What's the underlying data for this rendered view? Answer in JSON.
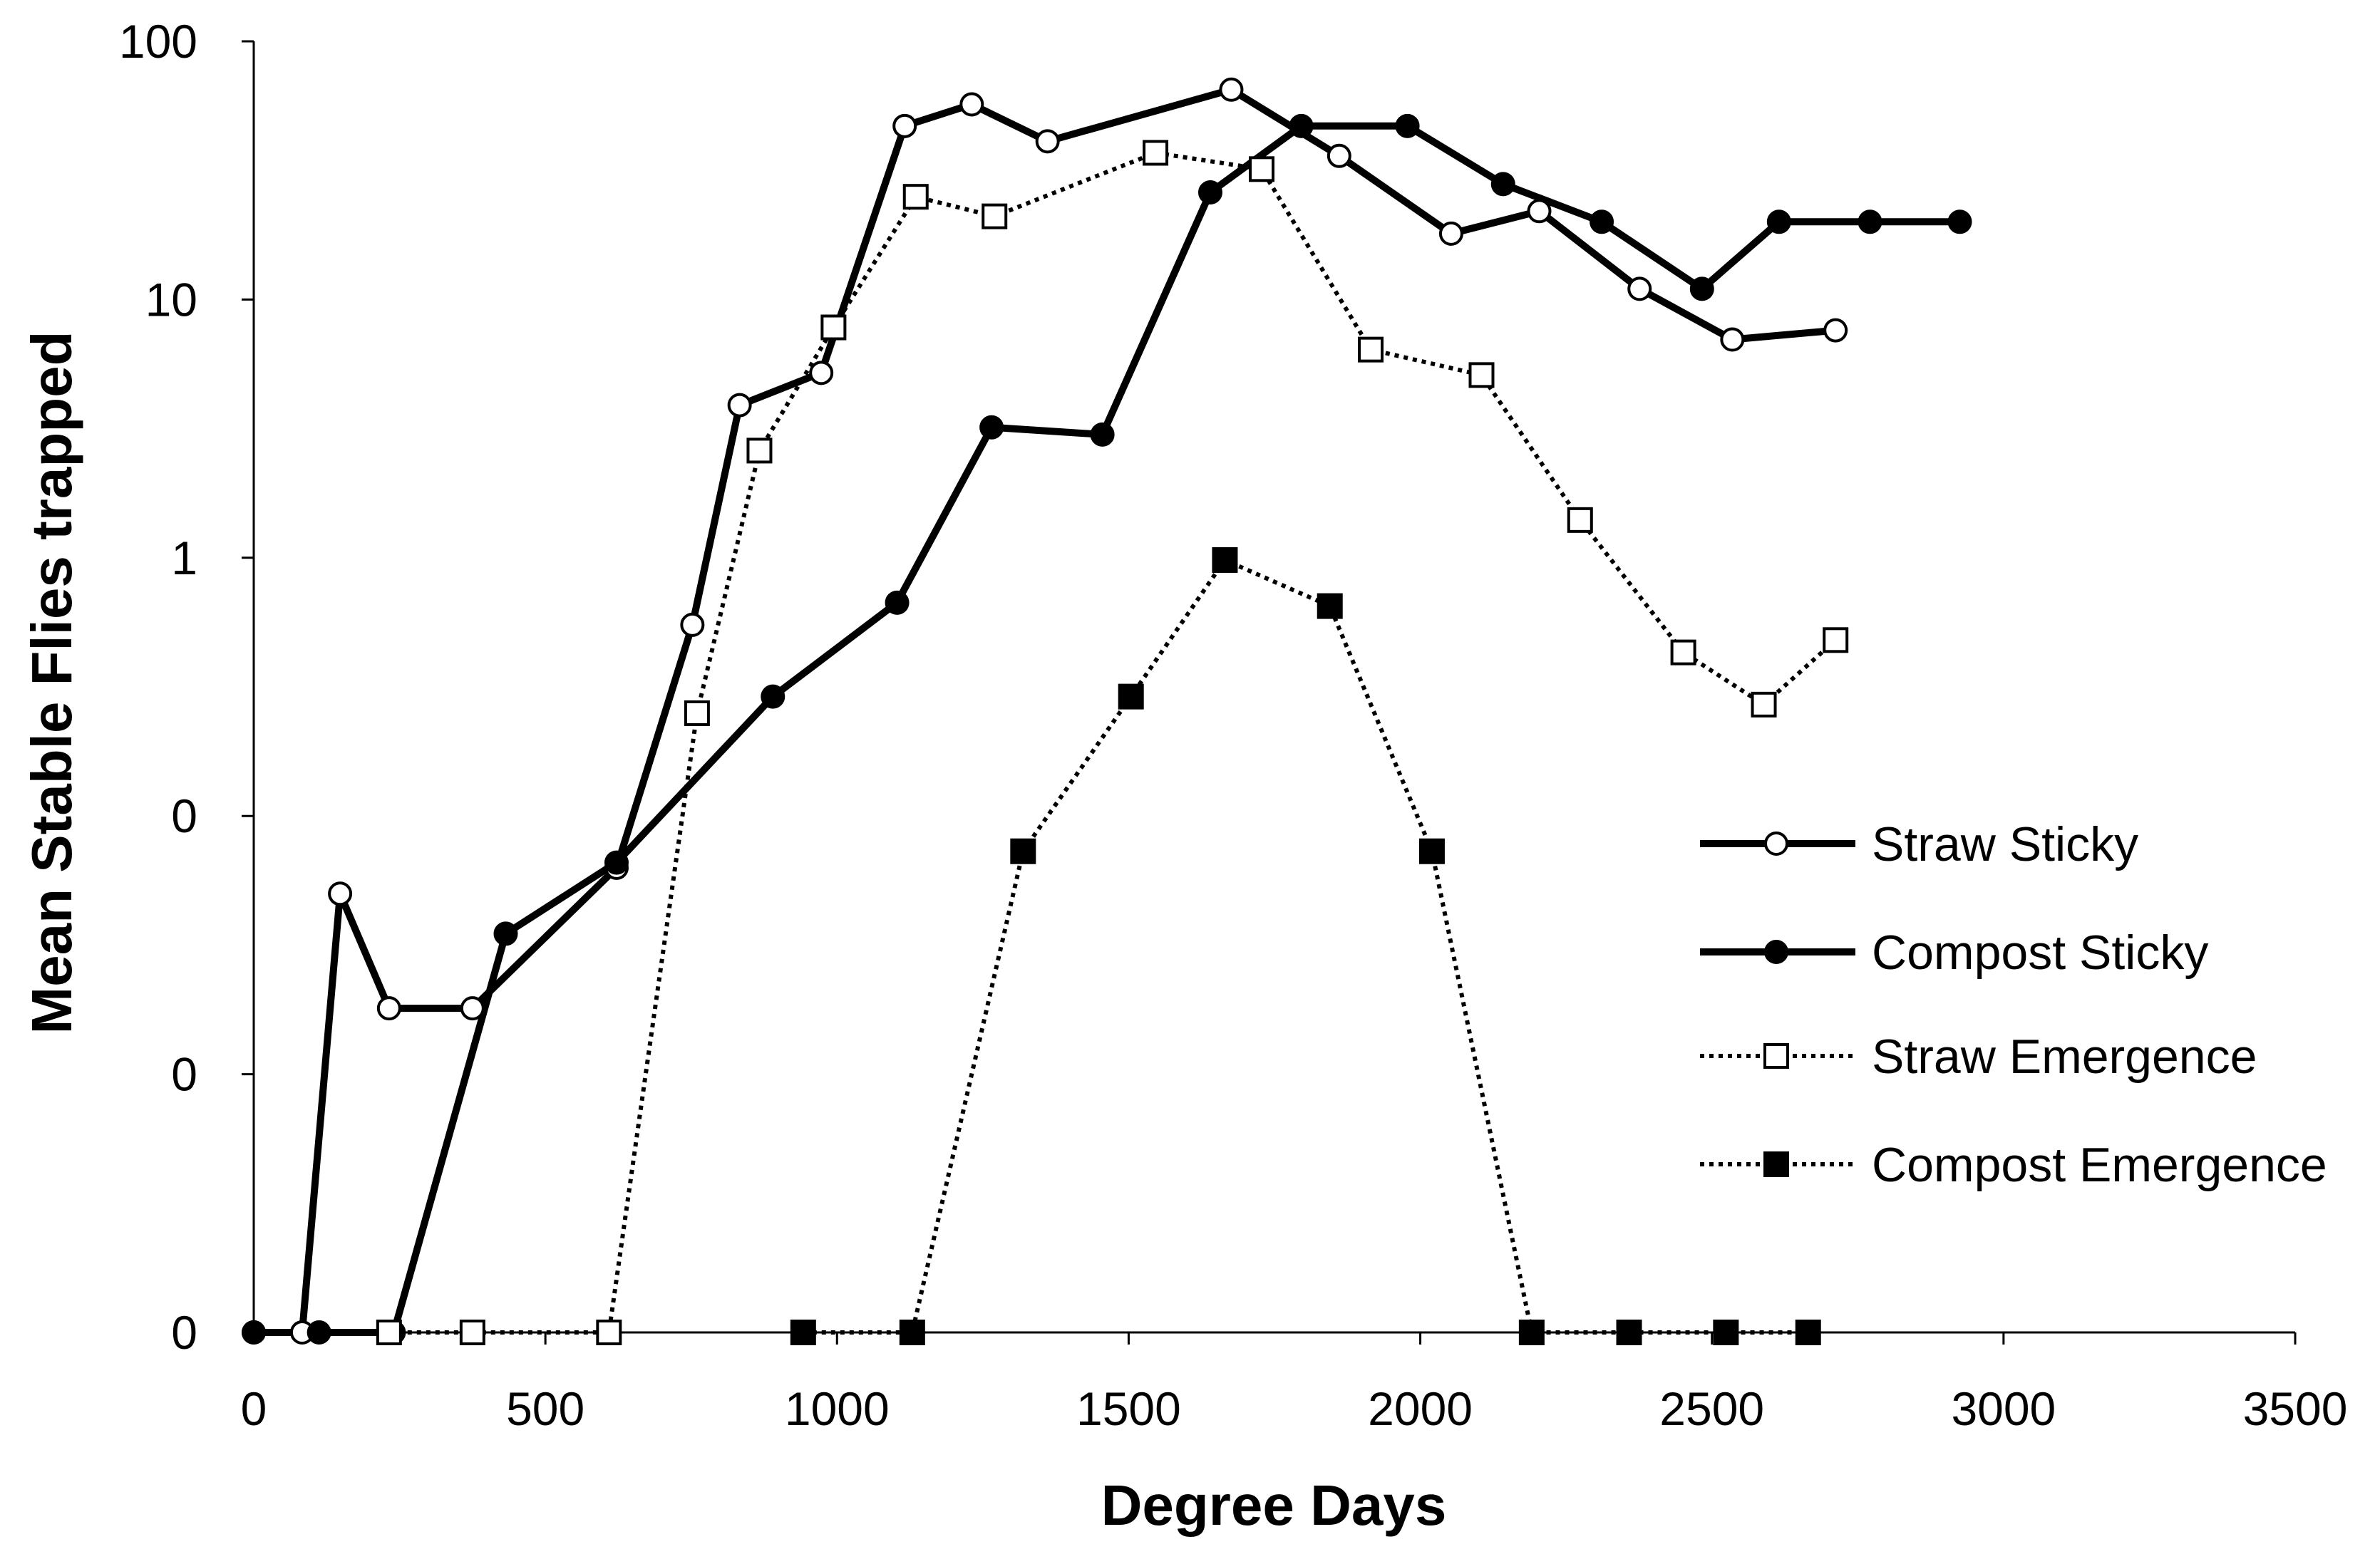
{
  "chart_data": {
    "type": "line",
    "xlabel": "Degree Days",
    "ylabel": "Mean Stable Flies trapped",
    "legend_position": "right",
    "x_axis": {
      "range": [
        0,
        3500
      ],
      "tick_values": [
        0,
        500,
        1000,
        1500,
        2000,
        2500,
        3000,
        3500
      ],
      "tick_labels": [
        "0",
        "500",
        "1000",
        "1500",
        "2000",
        "2500",
        "3000",
        "3500"
      ]
    },
    "y_axis": {
      "log_scale": true,
      "range": [
        0.001,
        100
      ],
      "tick_values": [
        100,
        10,
        1,
        0.1,
        0.01,
        0.001
      ],
      "tick_labels": [
        "100",
        "10",
        "1",
        "0",
        "0",
        "0"
      ]
    },
    "axis_color": "#000000",
    "series": [
      {
        "name": "Straw Sticky",
        "color": "#000000",
        "marker_fill": "#ffffff",
        "x": [
          0,
          83,
          148,
          232,
          375,
          622,
          752,
          833,
          973,
          1116,
          1231,
          1361,
          1676,
          1861,
          2053,
          2204,
          2376,
          2535,
          2712
        ],
        "y": [
          0.001,
          0.001,
          0.05,
          0.018,
          0.018,
          0.063,
          0.55,
          3.9,
          5.2,
          47,
          57,
          41,
          65,
          36,
          18,
          22,
          11,
          7.0,
          7.6
        ]
      },
      {
        "name": "Compost Sticky",
        "color": "#000000",
        "marker_fill": "#000000",
        "x": [
          0,
          112,
          240,
          432,
          622,
          890,
          1103,
          1265,
          1455,
          1640,
          1796,
          1978,
          2142,
          2311,
          2483,
          2615,
          2771,
          2925
        ],
        "y": [
          0.001,
          0.001,
          0.001,
          0.035,
          0.066,
          0.29,
          0.67,
          3.2,
          3.0,
          26,
          47,
          47,
          28,
          20,
          11,
          20,
          20,
          20
        ]
      },
      {
        "name": "Straw Emergence",
        "color": "#000000",
        "marker_fill": "#ffffff",
        "x": [
          232,
          375,
          609,
          760,
          867,
          994,
          1135,
          1270,
          1546,
          1728,
          1915,
          2105,
          2274,
          2451,
          2589,
          2712
        ],
        "y": [
          0.001,
          0.001,
          0.001,
          0.25,
          2.6,
          7.8,
          25,
          21,
          37,
          32,
          6.4,
          5.1,
          1.4,
          0.43,
          0.27,
          0.48
        ]
      },
      {
        "name": "Compost Emergence",
        "color": "#000000",
        "marker_fill": "#000000",
        "x": [
          942,
          1129,
          1319,
          1504,
          1665,
          1845,
          2020,
          2191,
          2358,
          2524,
          2665
        ],
        "y": [
          0.001,
          0.001,
          0.073,
          0.29,
          0.98,
          0.65,
          0.073,
          0.001,
          0.001,
          0.001,
          0.001
        ]
      }
    ]
  }
}
